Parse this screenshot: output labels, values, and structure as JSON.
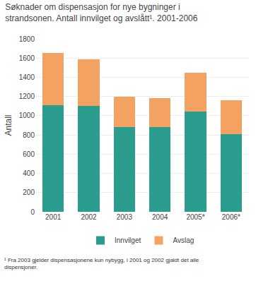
{
  "chart_data": {
    "type": "bar",
    "stacked": true,
    "title": "Søknader om dispensasjon for nye bygninger i\nstrandsonen. Antall innvilget og avslått¹. 2001-2006",
    "ylabel": "Antall",
    "categories": [
      "2001",
      "2002",
      "2003",
      "2004",
      "2005*",
      "2006*"
    ],
    "series": [
      {
        "name": "Innvilget",
        "color": "#2a9d8f",
        "values": [
          1110,
          1100,
          885,
          885,
          1045,
          805
        ]
      },
      {
        "name": "Avslag",
        "color": "#f4a261",
        "values": [
          545,
          490,
          310,
          300,
          405,
          355
        ]
      }
    ],
    "ylim": [
      0,
      1800
    ],
    "yticks": [
      0,
      200,
      400,
      600,
      800,
      1000,
      1200,
      1400,
      1600,
      1800
    ],
    "grid": true,
    "legend": "bottom",
    "annotations": [
      "¹ Fra 2003 gjelder dispensasjonene kun nybygg, i 2001 og 2002 gjaldt det alle\ndispensjoner."
    ]
  }
}
